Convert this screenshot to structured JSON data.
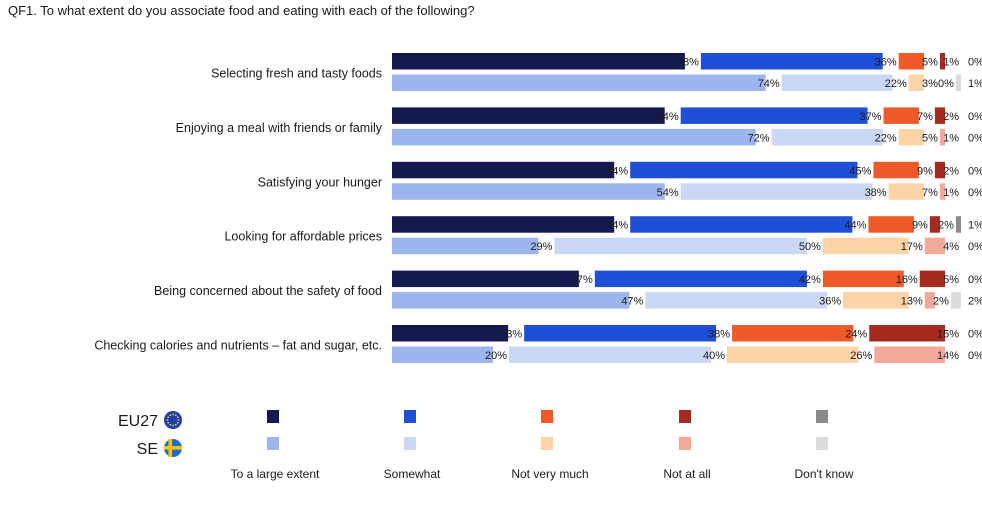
{
  "chart_data": {
    "type": "bar",
    "title": "QF1. To what extent do you associate food and eating with each of the following?",
    "stacked": true,
    "orientation": "horizontal",
    "categories": [
      "Selecting fresh and tasty foods",
      "Enjoying a meal with friends or family",
      "Satisfying your hunger",
      "Looking for affordable prices",
      "Being concerned about the safety of food",
      "Checking calories and nutrients – fat and sugar, etc."
    ],
    "groups": [
      "EU27",
      "SE"
    ],
    "answers": [
      {
        "name": "To a large extent",
        "color_eu27": "#141a4f",
        "color_se": "#9db5ee"
      },
      {
        "name": "Somewhat",
        "color_eu27": "#1f4fd6",
        "color_se": "#cbd8f5"
      },
      {
        "name": "Not very much",
        "color_eu27": "#f05a28",
        "color_se": "#fdd4a6"
      },
      {
        "name": "Not at all",
        "color_eu27": "#a52a1f",
        "color_se": "#f4a89a"
      },
      {
        "name": "Don't know",
        "color_eu27": "#8a8a8a",
        "color_se": "#dcdcdc"
      }
    ],
    "series": [
      {
        "group": "EU27",
        "values": [
          [
            58,
            36,
            5,
            1,
            0
          ],
          [
            54,
            37,
            7,
            2,
            0
          ],
          [
            44,
            45,
            9,
            2,
            0
          ],
          [
            44,
            44,
            9,
            2,
            1
          ],
          [
            37,
            42,
            16,
            5,
            0
          ],
          [
            23,
            38,
            24,
            15,
            0
          ]
        ]
      },
      {
        "group": "SE",
        "values": [
          [
            74,
            22,
            3,
            0,
            1
          ],
          [
            72,
            22,
            5,
            1,
            0
          ],
          [
            54,
            38,
            7,
            1,
            0
          ],
          [
            29,
            50,
            17,
            4,
            0
          ],
          [
            47,
            36,
            13,
            2,
            2
          ],
          [
            20,
            40,
            26,
            14,
            0
          ]
        ]
      }
    ],
    "value_suffix": "%",
    "legend_position": "bottom-left"
  }
}
